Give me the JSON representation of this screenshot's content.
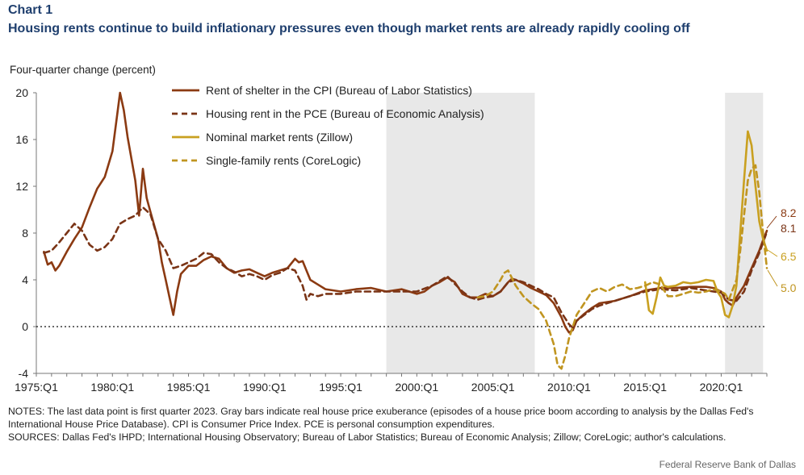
{
  "header": {
    "chart_label": "Chart 1",
    "title": "Housing rents continue to build inflationary pressures even though market rents are already rapidly cooling off",
    "y_caption": "Four-quarter change (percent)"
  },
  "notes": {
    "notes_text": "NOTES: The last data point is first quarter 2023. Gray bars indicate real house price exuberance (episodes of a house price boom according to analysis by the Dallas Fed's International House Price Database). CPI is Consumer Price Index. PCE is personal consumption expenditures.",
    "sources_text": "SOURCES: Dallas Fed's IHPD; International Housing Observatory; Bureau of Labor Statistics; Bureau of Economic Analysis; Zillow; CoreLogic; author's calculations.",
    "footer": "Federal Reserve Bank of Dallas"
  },
  "colors": {
    "cpi": "#8b3a12",
    "pce": "#7a3416",
    "zillow": "#c9a020",
    "corelogic": "#c09520",
    "shade": "#e8e8e8"
  },
  "chart_data": {
    "type": "line",
    "title": "Housing rents continue to build inflationary pressures even though market rents are already rapidly cooling off",
    "xlabel": "",
    "ylabel": "Four-quarter change (percent)",
    "xlim": [
      1975.0,
      2023.0
    ],
    "ylim": [
      -4,
      20
    ],
    "yticks": [
      -4,
      0,
      4,
      8,
      12,
      16,
      20
    ],
    "x_tick_labels": [
      {
        "x": 1975.0,
        "label": "1975:Q1"
      },
      {
        "x": 1980.0,
        "label": "1980:Q1"
      },
      {
        "x": 1985.0,
        "label": "1985:Q1"
      },
      {
        "x": 1990.0,
        "label": "1990:Q1"
      },
      {
        "x": 1995.0,
        "label": "1995:Q1"
      },
      {
        "x": 2000.0,
        "label": "2000:Q1"
      },
      {
        "x": 2005.0,
        "label": "2005:Q1"
      },
      {
        "x": 2010.0,
        "label": "2010:Q1"
      },
      {
        "x": 2015.0,
        "label": "2015:Q1"
      },
      {
        "x": 2020.0,
        "label": "2020:Q1"
      }
    ],
    "shaded_periods": [
      [
        1998.0,
        2007.75
      ],
      [
        2020.25,
        2022.75
      ]
    ],
    "zero_line": true,
    "legend_position": "top-left",
    "series": [
      {
        "name": "Rent of shelter in the CPI (Bureau of Labor Statistics)",
        "style": "solid",
        "color": "#8b3a12",
        "points": [
          [
            1975.5,
            6.4
          ],
          [
            1975.75,
            5.3
          ],
          [
            1976.0,
            5.5
          ],
          [
            1976.25,
            4.8
          ],
          [
            1976.5,
            5.2
          ],
          [
            1977.0,
            6.4
          ],
          [
            1977.5,
            7.5
          ],
          [
            1978.0,
            8.5
          ],
          [
            1978.5,
            10.2
          ],
          [
            1979.0,
            11.8
          ],
          [
            1979.5,
            12.8
          ],
          [
            1980.0,
            15.0
          ],
          [
            1980.25,
            17.5
          ],
          [
            1980.5,
            20.0
          ],
          [
            1980.75,
            18.5
          ],
          [
            1981.0,
            16.2
          ],
          [
            1981.5,
            12.5
          ],
          [
            1981.75,
            9.5
          ],
          [
            1982.0,
            13.5
          ],
          [
            1982.25,
            11.0
          ],
          [
            1982.5,
            9.8
          ],
          [
            1983.0,
            7.5
          ],
          [
            1983.25,
            5.5
          ],
          [
            1983.5,
            4.0
          ],
          [
            1983.75,
            2.5
          ],
          [
            1984.0,
            1.0
          ],
          [
            1984.25,
            3.0
          ],
          [
            1984.5,
            4.5
          ],
          [
            1985.0,
            5.2
          ],
          [
            1985.5,
            5.2
          ],
          [
            1986.0,
            5.7
          ],
          [
            1986.5,
            6.0
          ],
          [
            1987.0,
            5.8
          ],
          [
            1987.5,
            5.0
          ],
          [
            1988.0,
            4.6
          ],
          [
            1988.5,
            4.8
          ],
          [
            1989.0,
            4.9
          ],
          [
            1989.5,
            4.6
          ],
          [
            1990.0,
            4.3
          ],
          [
            1990.5,
            4.6
          ],
          [
            1991.0,
            4.8
          ],
          [
            1991.5,
            5.0
          ],
          [
            1992.0,
            5.8
          ],
          [
            1992.25,
            5.5
          ],
          [
            1992.5,
            5.6
          ],
          [
            1993.0,
            4.0
          ],
          [
            1993.5,
            3.6
          ],
          [
            1994.0,
            3.2
          ],
          [
            1995.0,
            3.0
          ],
          [
            1996.0,
            3.2
          ],
          [
            1997.0,
            3.3
          ],
          [
            1998.0,
            3.0
          ],
          [
            1999.0,
            3.2
          ],
          [
            2000.0,
            2.8
          ],
          [
            2000.5,
            3.0
          ],
          [
            2001.0,
            3.5
          ],
          [
            2001.5,
            3.8
          ],
          [
            2002.0,
            4.2
          ],
          [
            2002.5,
            3.8
          ],
          [
            2003.0,
            2.8
          ],
          [
            2003.5,
            2.5
          ],
          [
            2004.0,
            2.5
          ],
          [
            2004.5,
            2.8
          ],
          [
            2005.0,
            2.6
          ],
          [
            2005.5,
            3.0
          ],
          [
            2006.0,
            3.8
          ],
          [
            2006.25,
            4.1
          ],
          [
            2006.5,
            4.0
          ],
          [
            2007.0,
            3.7
          ],
          [
            2007.5,
            3.3
          ],
          [
            2008.0,
            3.0
          ],
          [
            2008.5,
            2.7
          ],
          [
            2009.0,
            2.0
          ],
          [
            2009.5,
            0.8
          ],
          [
            2009.75,
            0.0
          ],
          [
            2010.0,
            -0.5
          ],
          [
            2010.25,
            -0.3
          ],
          [
            2010.5,
            0.5
          ],
          [
            2011.0,
            1.1
          ],
          [
            2011.5,
            1.6
          ],
          [
            2012.0,
            2.0
          ],
          [
            2013.0,
            2.2
          ],
          [
            2014.0,
            2.6
          ],
          [
            2015.0,
            3.1
          ],
          [
            2016.0,
            3.3
          ],
          [
            2017.0,
            3.3
          ],
          [
            2018.0,
            3.4
          ],
          [
            2019.0,
            3.4
          ],
          [
            2019.5,
            3.3
          ],
          [
            2020.0,
            3.0
          ],
          [
            2020.25,
            2.3
          ],
          [
            2020.5,
            2.0
          ],
          [
            2020.75,
            1.8
          ],
          [
            2021.0,
            2.5
          ],
          [
            2021.5,
            3.5
          ],
          [
            2022.0,
            5.0
          ],
          [
            2022.5,
            6.5
          ],
          [
            2022.75,
            7.4
          ],
          [
            2023.0,
            8.2
          ]
        ]
      },
      {
        "name": "Housing rent in the PCE (Bureau of Economic Analysis)",
        "style": "dashed",
        "color": "#7a3416",
        "points": [
          [
            1975.5,
            6.3
          ],
          [
            1976.0,
            6.5
          ],
          [
            1976.5,
            7.2
          ],
          [
            1977.0,
            8.0
          ],
          [
            1977.5,
            8.8
          ],
          [
            1978.0,
            8.2
          ],
          [
            1978.5,
            7.0
          ],
          [
            1979.0,
            6.5
          ],
          [
            1979.5,
            6.8
          ],
          [
            1980.0,
            7.5
          ],
          [
            1980.5,
            8.8
          ],
          [
            1981.0,
            9.2
          ],
          [
            1981.5,
            9.5
          ],
          [
            1982.0,
            10.2
          ],
          [
            1982.5,
            9.6
          ],
          [
            1983.0,
            7.5
          ],
          [
            1983.5,
            6.5
          ],
          [
            1984.0,
            5.0
          ],
          [
            1984.5,
            5.2
          ],
          [
            1985.0,
            5.5
          ],
          [
            1985.5,
            5.8
          ],
          [
            1986.0,
            6.3
          ],
          [
            1986.5,
            6.2
          ],
          [
            1987.0,
            5.5
          ],
          [
            1987.5,
            5.0
          ],
          [
            1988.0,
            4.7
          ],
          [
            1988.5,
            4.3
          ],
          [
            1989.0,
            4.5
          ],
          [
            1989.5,
            4.3
          ],
          [
            1990.0,
            4.0
          ],
          [
            1990.5,
            4.4
          ],
          [
            1991.0,
            4.6
          ],
          [
            1991.5,
            5.0
          ],
          [
            1992.0,
            4.8
          ],
          [
            1992.5,
            3.5
          ],
          [
            1992.75,
            2.3
          ],
          [
            1993.0,
            2.8
          ],
          [
            1993.5,
            2.6
          ],
          [
            1994.0,
            2.8
          ],
          [
            1995.0,
            2.8
          ],
          [
            1996.0,
            3.0
          ],
          [
            1997.0,
            3.0
          ],
          [
            1998.0,
            3.0
          ],
          [
            1999.0,
            3.0
          ],
          [
            2000.0,
            3.0
          ],
          [
            2001.0,
            3.5
          ],
          [
            2002.0,
            4.3
          ],
          [
            2003.0,
            3.0
          ],
          [
            2003.5,
            2.5
          ],
          [
            2004.0,
            2.3
          ],
          [
            2004.5,
            2.5
          ],
          [
            2005.0,
            2.6
          ],
          [
            2005.5,
            3.0
          ],
          [
            2006.0,
            3.8
          ],
          [
            2006.5,
            4.0
          ],
          [
            2007.0,
            3.8
          ],
          [
            2007.5,
            3.5
          ],
          [
            2008.0,
            3.2
          ],
          [
            2008.5,
            2.8
          ],
          [
            2009.0,
            2.5
          ],
          [
            2009.5,
            1.2
          ],
          [
            2010.0,
            0.2
          ],
          [
            2010.25,
            -0.1
          ],
          [
            2010.5,
            0.5
          ],
          [
            2011.0,
            1.0
          ],
          [
            2011.5,
            1.5
          ],
          [
            2012.0,
            1.8
          ],
          [
            2013.0,
            2.2
          ],
          [
            2014.0,
            2.6
          ],
          [
            2015.0,
            3.0
          ],
          [
            2016.0,
            3.2
          ],
          [
            2017.0,
            3.1
          ],
          [
            2018.0,
            3.3
          ],
          [
            2019.0,
            3.1
          ],
          [
            2020.0,
            2.9
          ],
          [
            2020.5,
            2.3
          ],
          [
            2021.0,
            2.2
          ],
          [
            2021.5,
            3.0
          ],
          [
            2022.0,
            4.8
          ],
          [
            2022.5,
            6.3
          ],
          [
            2023.0,
            8.1
          ]
        ]
      },
      {
        "name": "Nominal market rents (Zillow)",
        "style": "solid",
        "color": "#c9a020",
        "points": [
          [
            2015.0,
            3.8
          ],
          [
            2015.25,
            1.4
          ],
          [
            2015.5,
            1.1
          ],
          [
            2015.75,
            2.5
          ],
          [
            2016.0,
            4.2
          ],
          [
            2016.25,
            3.5
          ],
          [
            2016.5,
            3.4
          ],
          [
            2017.0,
            3.5
          ],
          [
            2017.5,
            3.8
          ],
          [
            2018.0,
            3.7
          ],
          [
            2018.5,
            3.8
          ],
          [
            2019.0,
            4.0
          ],
          [
            2019.5,
            3.9
          ],
          [
            2019.75,
            3.0
          ],
          [
            2020.0,
            2.5
          ],
          [
            2020.25,
            1.0
          ],
          [
            2020.5,
            0.8
          ],
          [
            2020.75,
            1.8
          ],
          [
            2021.0,
            3.5
          ],
          [
            2021.25,
            8.0
          ],
          [
            2021.5,
            12.5
          ],
          [
            2021.75,
            16.7
          ],
          [
            2022.0,
            15.5
          ],
          [
            2022.25,
            12.0
          ],
          [
            2022.5,
            9.0
          ],
          [
            2022.75,
            7.5
          ],
          [
            2023.0,
            6.5
          ]
        ]
      },
      {
        "name": "Single-family rents (CoreLogic)",
        "style": "dashed",
        "color": "#c09520",
        "points": [
          [
            2004.0,
            2.5
          ],
          [
            2004.5,
            2.6
          ],
          [
            2005.0,
            3.0
          ],
          [
            2005.5,
            4.0
          ],
          [
            2005.75,
            4.6
          ],
          [
            2006.0,
            4.8
          ],
          [
            2006.5,
            3.5
          ],
          [
            2007.0,
            2.6
          ],
          [
            2007.5,
            2.0
          ],
          [
            2008.0,
            1.5
          ],
          [
            2008.5,
            0.5
          ],
          [
            2009.0,
            -1.5
          ],
          [
            2009.25,
            -3.3
          ],
          [
            2009.5,
            -3.6
          ],
          [
            2009.75,
            -2.5
          ],
          [
            2010.0,
            -1.0
          ],
          [
            2010.5,
            1.0
          ],
          [
            2011.0,
            2.0
          ],
          [
            2011.5,
            3.0
          ],
          [
            2012.0,
            3.3
          ],
          [
            2012.5,
            3.0
          ],
          [
            2013.0,
            3.4
          ],
          [
            2013.5,
            3.6
          ],
          [
            2014.0,
            3.2
          ],
          [
            2014.5,
            3.3
          ],
          [
            2015.0,
            3.5
          ],
          [
            2015.5,
            3.8
          ],
          [
            2016.0,
            3.6
          ],
          [
            2016.5,
            2.6
          ],
          [
            2017.0,
            2.6
          ],
          [
            2017.5,
            2.8
          ],
          [
            2018.0,
            3.0
          ],
          [
            2018.5,
            2.9
          ],
          [
            2019.0,
            3.0
          ],
          [
            2019.5,
            3.2
          ],
          [
            2020.0,
            3.0
          ],
          [
            2020.25,
            2.8
          ],
          [
            2020.5,
            2.3
          ],
          [
            2021.0,
            4.0
          ],
          [
            2021.25,
            6.5
          ],
          [
            2021.5,
            9.5
          ],
          [
            2021.75,
            12.5
          ],
          [
            2022.0,
            13.5
          ],
          [
            2022.25,
            13.8
          ],
          [
            2022.5,
            11.5
          ],
          [
            2022.75,
            8.0
          ],
          [
            2023.0,
            5.0
          ]
        ]
      }
    ],
    "end_labels": [
      {
        "text": "8.2",
        "series": "cpi"
      },
      {
        "text": "8.1",
        "series": "pce"
      },
      {
        "text": "6.5",
        "series": "zillow"
      },
      {
        "text": "5.0",
        "series": "corelogic"
      }
    ]
  }
}
